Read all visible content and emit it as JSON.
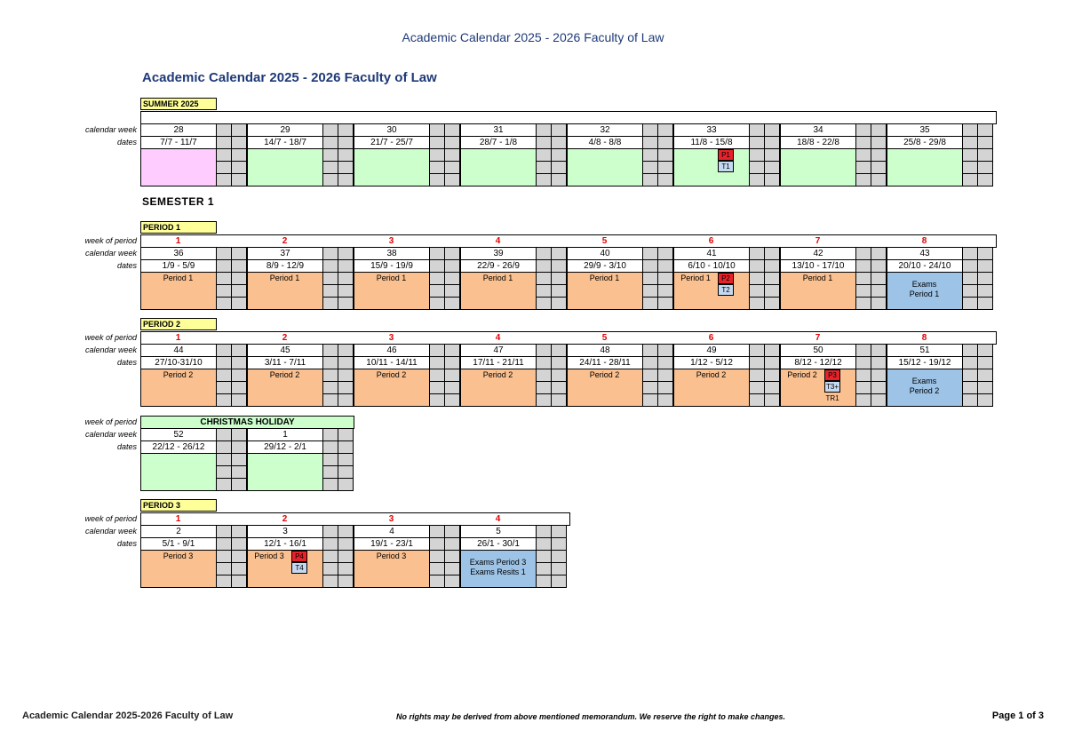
{
  "page_header": "Academic Calendar 2025 - 2026 Faculty of Law",
  "title": "Academic Calendar 2025 - 2026 Faculty of Law",
  "semester_heading": "SEMESTER 1",
  "row_labels": {
    "week_of_period": "week of period",
    "calendar_week": "calendar week",
    "dates": "dates"
  },
  "sections": [
    {
      "label": "SUMMER 2025",
      "weeks": [
        {
          "week": 28,
          "dates": "7/7 - 11/7",
          "color": "#ffccff"
        },
        {
          "week": 29,
          "dates": "14/7 - 18/7",
          "color": "#ccffcc"
        },
        {
          "week": 30,
          "dates": "21/7 - 25/7",
          "color": "#ccffcc"
        },
        {
          "week": 31,
          "dates": "28/7 - 1/8",
          "color": "#ccffcc"
        },
        {
          "week": 32,
          "dates": "4/8 - 8/8",
          "color": "#ccffcc"
        },
        {
          "week": 33,
          "dates": "11/8 - 15/8",
          "color": "#ccffcc",
          "badges": [
            {
              "text": "P1",
              "color": "#e8222a"
            },
            {
              "text": "T1",
              "color": "#c5d9f1"
            }
          ]
        },
        {
          "week": 34,
          "dates": "18/8 - 22/8",
          "color": "#ccffcc"
        },
        {
          "week": 35,
          "dates": "25/8 - 29/8",
          "color": "#ccffcc"
        }
      ]
    },
    {
      "label": "PERIOD 1",
      "weeks": [
        {
          "period_week": 1,
          "week": 36,
          "dates": "1/9 - 5/9",
          "color": "#fac090",
          "note": [
            "Period 1"
          ]
        },
        {
          "period_week": 2,
          "week": 37,
          "dates": "8/9 - 12/9",
          "color": "#fac090",
          "note": [
            "Period 1"
          ]
        },
        {
          "period_week": 3,
          "week": 38,
          "dates": "15/9 - 19/9",
          "color": "#fac090",
          "note": [
            "Period 1"
          ]
        },
        {
          "period_week": 4,
          "week": 39,
          "dates": "22/9 - 26/9",
          "color": "#fac090",
          "note": [
            "Period 1"
          ]
        },
        {
          "period_week": 5,
          "week": 40,
          "dates": "29/9 - 3/10",
          "color": "#fac090",
          "note": [
            "Period 1"
          ]
        },
        {
          "period_week": 6,
          "week": 41,
          "dates": "6/10 - 10/10",
          "color": "#fac090",
          "note": [
            "Period 1"
          ],
          "badges": [
            {
              "text": "P2",
              "color": "#e8222a"
            },
            {
              "text": "T2",
              "color": "#c5d9f1"
            }
          ]
        },
        {
          "period_week": 7,
          "week": 42,
          "dates": "13/10 - 17/10",
          "color": "#fac090",
          "note": [
            "Period 1"
          ]
        },
        {
          "period_week": 8,
          "week": 43,
          "dates": "20/10 - 24/10",
          "color": "#9dc3e6",
          "note": [
            "Exams",
            "Period 1"
          ]
        }
      ]
    },
    {
      "label": "PERIOD 2",
      "weeks": [
        {
          "period_week": 1,
          "week": 44,
          "dates": "27/10-31/10",
          "color": "#fac090",
          "note": [
            "Period 2"
          ]
        },
        {
          "period_week": 2,
          "week": 45,
          "dates": "3/11 - 7/11",
          "color": "#fac090",
          "note": [
            "Period 2"
          ]
        },
        {
          "period_week": 3,
          "week": 46,
          "dates": "10/11 - 14/11",
          "color": "#fac090",
          "note": [
            "Period 2"
          ]
        },
        {
          "period_week": 4,
          "week": 47,
          "dates": "17/11 - 21/11",
          "color": "#fac090",
          "note": [
            "Period 2"
          ]
        },
        {
          "period_week": 5,
          "week": 48,
          "dates": "24/11 - 28/11",
          "color": "#fac090",
          "note": [
            "Period 2"
          ]
        },
        {
          "period_week": 6,
          "week": 49,
          "dates": "1/12 - 5/12",
          "color": "#fac090",
          "note": [
            "Period 2"
          ]
        },
        {
          "period_week": 7,
          "week": 50,
          "dates": "8/12 - 12/12",
          "color": "#fac090",
          "note": [
            "Period 2"
          ],
          "badges": [
            {
              "text": "P3",
              "color": "#e8222a"
            },
            {
              "text": "T3+",
              "color": "#c5d9f1"
            },
            {
              "text": "TR1"
            }
          ]
        },
        {
          "period_week": 8,
          "week": 51,
          "dates": "15/12 - 19/12",
          "color": "#9dc3e6",
          "note": [
            "Exams",
            "Period 2"
          ]
        }
      ]
    },
    {
      "holiday": "CHRISTMAS HOLIDAY",
      "weeks": [
        {
          "week": 52,
          "dates": "22/12 - 26/12",
          "color": "#ccffcc"
        },
        {
          "week": 1,
          "dates": "29/12 - 2/1",
          "color": "#ccffcc"
        }
      ]
    },
    {
      "label": "PERIOD 3",
      "weeks": [
        {
          "period_week": 1,
          "week": 2,
          "dates": "5/1 - 9/1",
          "color": "#fac090",
          "note": [
            "Period 3"
          ]
        },
        {
          "period_week": 2,
          "week": 3,
          "dates": "12/1 - 16/1",
          "color": "#fac090",
          "note": [
            "Period 3"
          ],
          "badges": [
            {
              "text": "P4",
              "color": "#e8222a"
            },
            {
              "text": "T4",
              "color": "#c5d9f1"
            }
          ]
        },
        {
          "period_week": 3,
          "week": 4,
          "dates": "19/1 - 23/1",
          "color": "#fac090",
          "note": [
            "Period 3"
          ]
        },
        {
          "period_week": 4,
          "week": 5,
          "dates": "26/1 - 30/1",
          "color": "#9dc3e6",
          "note": [
            "Exams Period 3",
            "Exams Resits 1"
          ]
        }
      ]
    }
  ],
  "footer": {
    "left": "Academic Calendar 2025-2026 Faculty of Law",
    "center": "No rights may be derived from above mentioned memorandum. We reserve the right to make changes.",
    "right": "Page 1 of 3"
  }
}
